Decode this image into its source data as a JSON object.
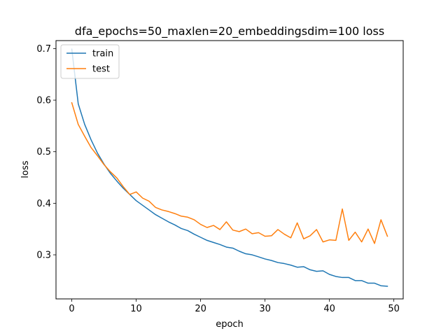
{
  "chart_data": {
    "type": "line",
    "title": "dfa_epochs=50_maxlen=20_embeddingsdim=100 loss",
    "xlabel": "epoch",
    "ylabel": "loss",
    "xlim": [
      -2.45,
      51.45
    ],
    "ylim": [
      0.2145,
      0.7155
    ],
    "xticks": [
      0,
      10,
      20,
      30,
      40,
      50
    ],
    "yticks": [
      0.3,
      0.4,
      0.5,
      0.6,
      0.7
    ],
    "ytick_labels": [
      "0.3",
      "0.4",
      "0.5",
      "0.6",
      "0.7"
    ],
    "grid": false,
    "legend_position": "upper left",
    "x": [
      0,
      1,
      2,
      3,
      4,
      5,
      6,
      7,
      8,
      9,
      10,
      11,
      12,
      13,
      14,
      15,
      16,
      17,
      18,
      19,
      20,
      21,
      22,
      23,
      24,
      25,
      26,
      27,
      28,
      29,
      30,
      31,
      32,
      33,
      34,
      35,
      36,
      37,
      38,
      39,
      40,
      41,
      42,
      43,
      44,
      45,
      46,
      47,
      48,
      49
    ],
    "series": [
      {
        "name": "train",
        "color": "#1f77b4",
        "values": [
          0.699,
          0.593,
          0.553,
          0.523,
          0.497,
          0.476,
          0.458,
          0.443,
          0.429,
          0.417,
          0.405,
          0.396,
          0.387,
          0.378,
          0.371,
          0.364,
          0.358,
          0.351,
          0.347,
          0.34,
          0.334,
          0.328,
          0.324,
          0.32,
          0.315,
          0.313,
          0.307,
          0.302,
          0.3,
          0.296,
          0.292,
          0.289,
          0.285,
          0.283,
          0.28,
          0.276,
          0.277,
          0.271,
          0.268,
          0.269,
          0.262,
          0.258,
          0.256,
          0.256,
          0.25,
          0.25,
          0.245,
          0.245,
          0.24,
          0.239
        ]
      },
      {
        "name": "test",
        "color": "#ff7f0e",
        "values": [
          0.595,
          0.553,
          0.53,
          0.508,
          0.492,
          0.475,
          0.461,
          0.449,
          0.432,
          0.417,
          0.422,
          0.41,
          0.404,
          0.392,
          0.387,
          0.384,
          0.38,
          0.375,
          0.373,
          0.368,
          0.359,
          0.353,
          0.357,
          0.349,
          0.364,
          0.348,
          0.345,
          0.35,
          0.341,
          0.343,
          0.336,
          0.337,
          0.349,
          0.34,
          0.333,
          0.362,
          0.331,
          0.337,
          0.349,
          0.325,
          0.329,
          0.328,
          0.389,
          0.328,
          0.344,
          0.325,
          0.35,
          0.322,
          0.368,
          0.336
        ]
      }
    ]
  }
}
